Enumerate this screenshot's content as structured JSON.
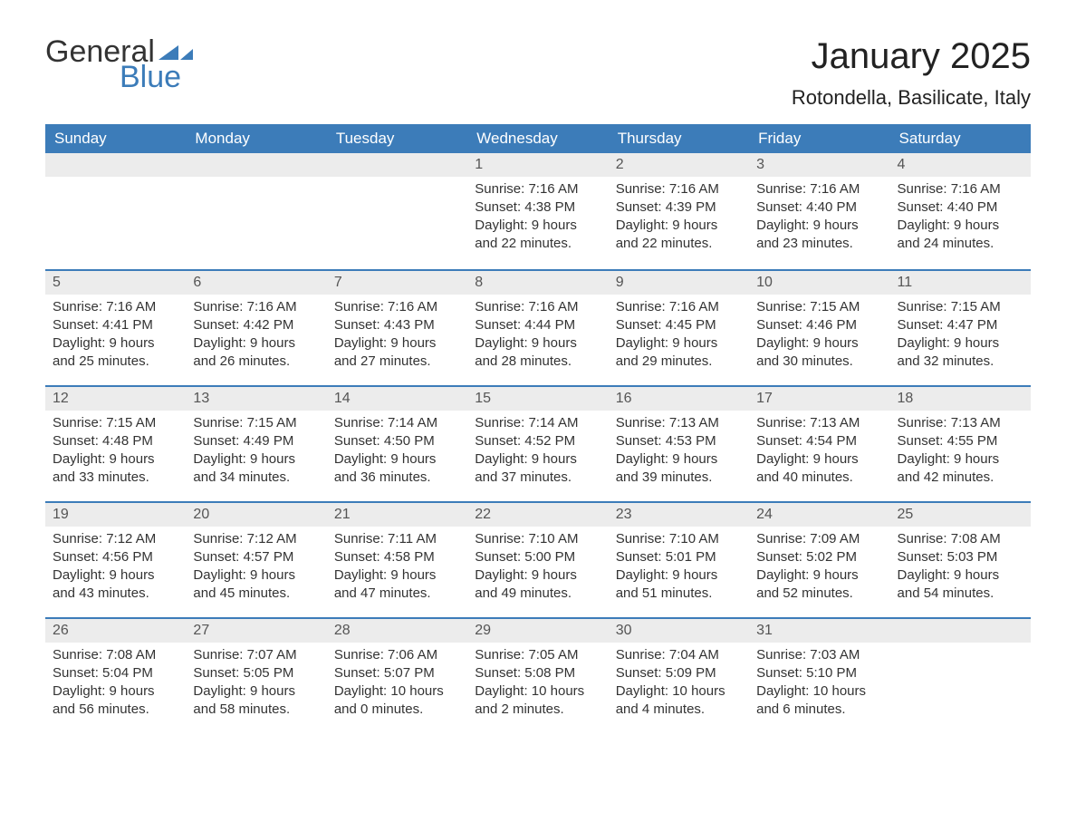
{
  "logo": {
    "word1": "General",
    "word2": "Blue"
  },
  "title": "January 2025",
  "location": "Rotondella, Basilicate, Italy",
  "colors": {
    "header_bg": "#3c7cb9",
    "header_text": "#ffffff",
    "daynum_bg": "#ececec",
    "daynum_text": "#555555",
    "body_text": "#333333",
    "divider": "#3c7cb9",
    "background": "#ffffff",
    "logo_accent": "#3c7cb9"
  },
  "typography": {
    "title_fontsize": 40,
    "location_fontsize": 22,
    "header_fontsize": 17,
    "cell_fontsize": 15,
    "font_family": "Arial"
  },
  "day_headers": [
    "Sunday",
    "Monday",
    "Tuesday",
    "Wednesday",
    "Thursday",
    "Friday",
    "Saturday"
  ],
  "weeks": [
    [
      null,
      null,
      null,
      {
        "n": "1",
        "sunrise": "Sunrise: 7:16 AM",
        "sunset": "Sunset: 4:38 PM",
        "daylight1": "Daylight: 9 hours",
        "daylight2": "and 22 minutes."
      },
      {
        "n": "2",
        "sunrise": "Sunrise: 7:16 AM",
        "sunset": "Sunset: 4:39 PM",
        "daylight1": "Daylight: 9 hours",
        "daylight2": "and 22 minutes."
      },
      {
        "n": "3",
        "sunrise": "Sunrise: 7:16 AM",
        "sunset": "Sunset: 4:40 PM",
        "daylight1": "Daylight: 9 hours",
        "daylight2": "and 23 minutes."
      },
      {
        "n": "4",
        "sunrise": "Sunrise: 7:16 AM",
        "sunset": "Sunset: 4:40 PM",
        "daylight1": "Daylight: 9 hours",
        "daylight2": "and 24 minutes."
      }
    ],
    [
      {
        "n": "5",
        "sunrise": "Sunrise: 7:16 AM",
        "sunset": "Sunset: 4:41 PM",
        "daylight1": "Daylight: 9 hours",
        "daylight2": "and 25 minutes."
      },
      {
        "n": "6",
        "sunrise": "Sunrise: 7:16 AM",
        "sunset": "Sunset: 4:42 PM",
        "daylight1": "Daylight: 9 hours",
        "daylight2": "and 26 minutes."
      },
      {
        "n": "7",
        "sunrise": "Sunrise: 7:16 AM",
        "sunset": "Sunset: 4:43 PM",
        "daylight1": "Daylight: 9 hours",
        "daylight2": "and 27 minutes."
      },
      {
        "n": "8",
        "sunrise": "Sunrise: 7:16 AM",
        "sunset": "Sunset: 4:44 PM",
        "daylight1": "Daylight: 9 hours",
        "daylight2": "and 28 minutes."
      },
      {
        "n": "9",
        "sunrise": "Sunrise: 7:16 AM",
        "sunset": "Sunset: 4:45 PM",
        "daylight1": "Daylight: 9 hours",
        "daylight2": "and 29 minutes."
      },
      {
        "n": "10",
        "sunrise": "Sunrise: 7:15 AM",
        "sunset": "Sunset: 4:46 PM",
        "daylight1": "Daylight: 9 hours",
        "daylight2": "and 30 minutes."
      },
      {
        "n": "11",
        "sunrise": "Sunrise: 7:15 AM",
        "sunset": "Sunset: 4:47 PM",
        "daylight1": "Daylight: 9 hours",
        "daylight2": "and 32 minutes."
      }
    ],
    [
      {
        "n": "12",
        "sunrise": "Sunrise: 7:15 AM",
        "sunset": "Sunset: 4:48 PM",
        "daylight1": "Daylight: 9 hours",
        "daylight2": "and 33 minutes."
      },
      {
        "n": "13",
        "sunrise": "Sunrise: 7:15 AM",
        "sunset": "Sunset: 4:49 PM",
        "daylight1": "Daylight: 9 hours",
        "daylight2": "and 34 minutes."
      },
      {
        "n": "14",
        "sunrise": "Sunrise: 7:14 AM",
        "sunset": "Sunset: 4:50 PM",
        "daylight1": "Daylight: 9 hours",
        "daylight2": "and 36 minutes."
      },
      {
        "n": "15",
        "sunrise": "Sunrise: 7:14 AM",
        "sunset": "Sunset: 4:52 PM",
        "daylight1": "Daylight: 9 hours",
        "daylight2": "and 37 minutes."
      },
      {
        "n": "16",
        "sunrise": "Sunrise: 7:13 AM",
        "sunset": "Sunset: 4:53 PM",
        "daylight1": "Daylight: 9 hours",
        "daylight2": "and 39 minutes."
      },
      {
        "n": "17",
        "sunrise": "Sunrise: 7:13 AM",
        "sunset": "Sunset: 4:54 PM",
        "daylight1": "Daylight: 9 hours",
        "daylight2": "and 40 minutes."
      },
      {
        "n": "18",
        "sunrise": "Sunrise: 7:13 AM",
        "sunset": "Sunset: 4:55 PM",
        "daylight1": "Daylight: 9 hours",
        "daylight2": "and 42 minutes."
      }
    ],
    [
      {
        "n": "19",
        "sunrise": "Sunrise: 7:12 AM",
        "sunset": "Sunset: 4:56 PM",
        "daylight1": "Daylight: 9 hours",
        "daylight2": "and 43 minutes."
      },
      {
        "n": "20",
        "sunrise": "Sunrise: 7:12 AM",
        "sunset": "Sunset: 4:57 PM",
        "daylight1": "Daylight: 9 hours",
        "daylight2": "and 45 minutes."
      },
      {
        "n": "21",
        "sunrise": "Sunrise: 7:11 AM",
        "sunset": "Sunset: 4:58 PM",
        "daylight1": "Daylight: 9 hours",
        "daylight2": "and 47 minutes."
      },
      {
        "n": "22",
        "sunrise": "Sunrise: 7:10 AM",
        "sunset": "Sunset: 5:00 PM",
        "daylight1": "Daylight: 9 hours",
        "daylight2": "and 49 minutes."
      },
      {
        "n": "23",
        "sunrise": "Sunrise: 7:10 AM",
        "sunset": "Sunset: 5:01 PM",
        "daylight1": "Daylight: 9 hours",
        "daylight2": "and 51 minutes."
      },
      {
        "n": "24",
        "sunrise": "Sunrise: 7:09 AM",
        "sunset": "Sunset: 5:02 PM",
        "daylight1": "Daylight: 9 hours",
        "daylight2": "and 52 minutes."
      },
      {
        "n": "25",
        "sunrise": "Sunrise: 7:08 AM",
        "sunset": "Sunset: 5:03 PM",
        "daylight1": "Daylight: 9 hours",
        "daylight2": "and 54 minutes."
      }
    ],
    [
      {
        "n": "26",
        "sunrise": "Sunrise: 7:08 AM",
        "sunset": "Sunset: 5:04 PM",
        "daylight1": "Daylight: 9 hours",
        "daylight2": "and 56 minutes."
      },
      {
        "n": "27",
        "sunrise": "Sunrise: 7:07 AM",
        "sunset": "Sunset: 5:05 PM",
        "daylight1": "Daylight: 9 hours",
        "daylight2": "and 58 minutes."
      },
      {
        "n": "28",
        "sunrise": "Sunrise: 7:06 AM",
        "sunset": "Sunset: 5:07 PM",
        "daylight1": "Daylight: 10 hours",
        "daylight2": "and 0 minutes."
      },
      {
        "n": "29",
        "sunrise": "Sunrise: 7:05 AM",
        "sunset": "Sunset: 5:08 PM",
        "daylight1": "Daylight: 10 hours",
        "daylight2": "and 2 minutes."
      },
      {
        "n": "30",
        "sunrise": "Sunrise: 7:04 AM",
        "sunset": "Sunset: 5:09 PM",
        "daylight1": "Daylight: 10 hours",
        "daylight2": "and 4 minutes."
      },
      {
        "n": "31",
        "sunrise": "Sunrise: 7:03 AM",
        "sunset": "Sunset: 5:10 PM",
        "daylight1": "Daylight: 10 hours",
        "daylight2": "and 6 minutes."
      },
      null
    ]
  ]
}
